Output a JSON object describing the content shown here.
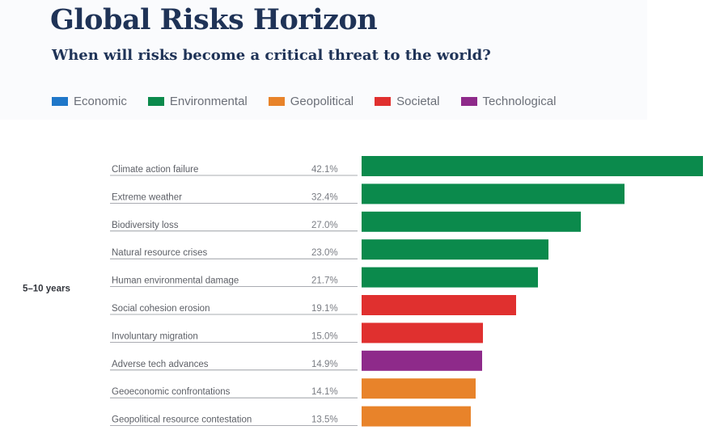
{
  "chart_data": {
    "type": "bar",
    "orientation": "horizontal",
    "title": "Global Risks Horizon",
    "subtitle": "When will risks become a critical threat to the world?",
    "legend": [
      {
        "name": "Economic",
        "color": "#1f77c9"
      },
      {
        "name": "Environmental",
        "color": "#0b8a4c"
      },
      {
        "name": "Geopolitical",
        "color": "#e8832a"
      },
      {
        "name": "Societal",
        "color": "#e0302f"
      },
      {
        "name": "Technological",
        "color": "#8e2a8a"
      }
    ],
    "legend_placement": "top",
    "group_label": "5–10 years",
    "categories": [
      "Climate action failure",
      "Extreme weather",
      "Biodiversity loss",
      "Natural resource crises",
      "Human environmental damage",
      "Social cohesion erosion",
      "Involuntary migration",
      "Adverse tech advances",
      "Geoeconomic confrontations",
      "Geopolitical resource contestation"
    ],
    "value_labels": [
      "42.1%",
      "32.4%",
      "27.0%",
      "23.0%",
      "21.7%",
      "19.1%",
      "15.0%",
      "14.9%",
      "14.1%",
      "13.5%"
    ],
    "values": [
      42.1,
      32.4,
      27.0,
      23.0,
      21.7,
      19.1,
      15.0,
      14.9,
      14.1,
      13.5
    ],
    "bar_colors": [
      "#0b8a4c",
      "#0b8a4c",
      "#0b8a4c",
      "#0b8a4c",
      "#0b8a4c",
      "#e0302f",
      "#e0302f",
      "#8e2a8a",
      "#e8832a",
      "#e8832a"
    ],
    "xlim": [
      0,
      42.1
    ],
    "grid": false
  }
}
